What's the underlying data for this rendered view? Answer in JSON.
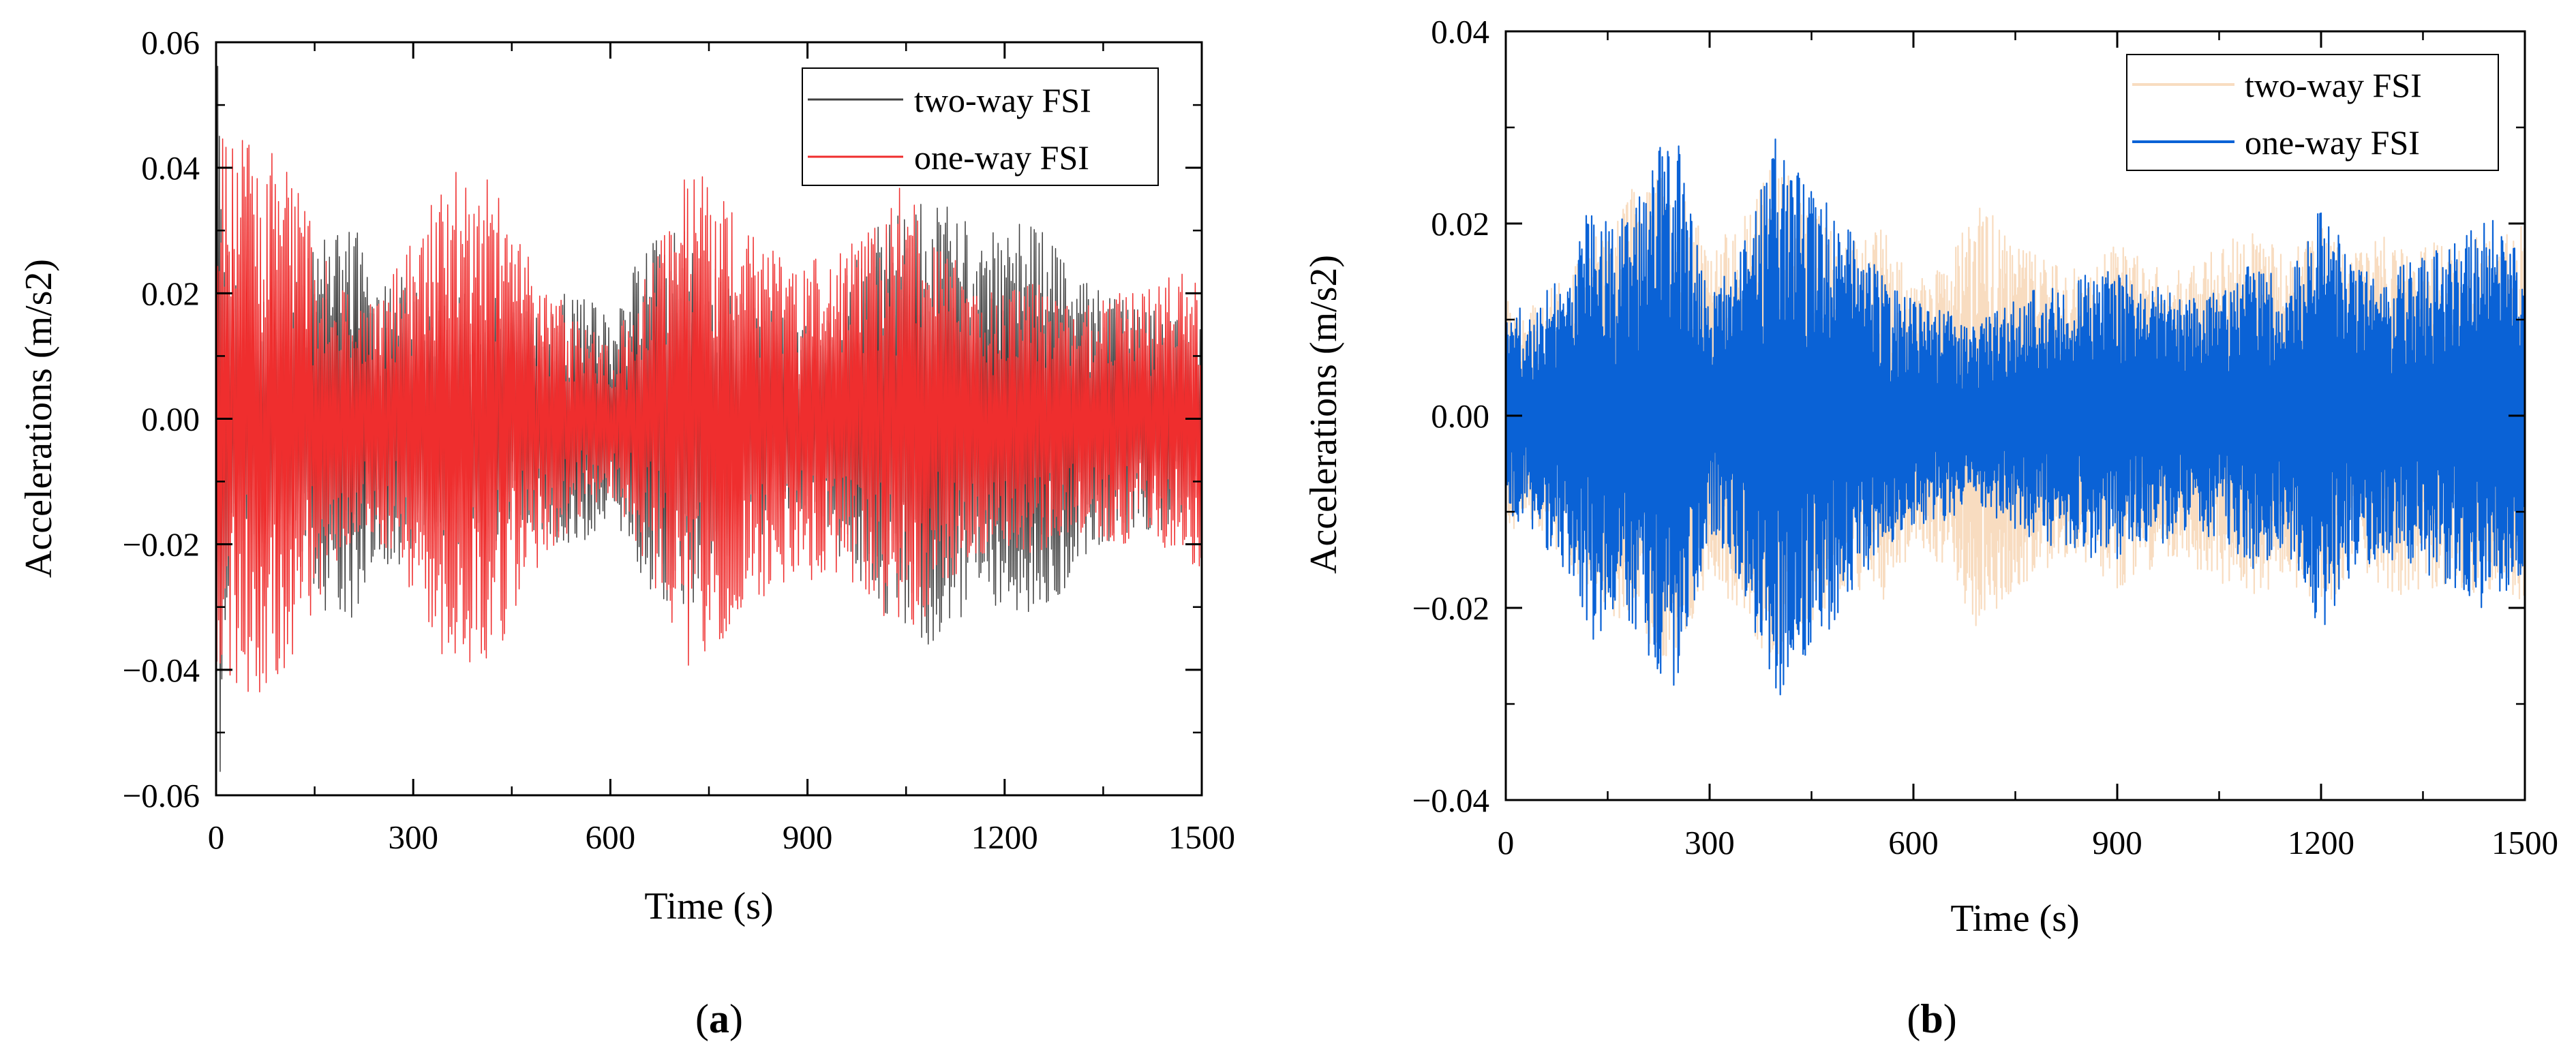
{
  "chart_data": [
    {
      "panel": "a",
      "type": "line",
      "caption_letter": "a",
      "xlabel": "Time (s)",
      "ylabel": "Accelerations (m/s2)",
      "xlim": [
        0,
        1500
      ],
      "ylim": [
        -0.06,
        0.06
      ],
      "x_ticks": [
        0,
        300,
        600,
        900,
        1200,
        1500
      ],
      "x_tick_labels": [
        "0",
        "300",
        "600",
        "900",
        "1200",
        "1500"
      ],
      "y_ticks": [
        -0.06,
        -0.04,
        -0.02,
        0.0,
        0.02,
        0.04,
        0.06
      ],
      "y_tick_labels": [
        "−0.06",
        "−0.04",
        "−0.02",
        "0.00",
        "0.02",
        "0.04",
        "0.06"
      ],
      "legend_position": "top-right",
      "series": [
        {
          "name": "two-way FSI",
          "color": "#404040",
          "envelope_time": [
            0,
            5,
            15,
            40,
            80,
            120,
            160,
            200,
            240,
            280,
            320,
            360,
            400,
            440,
            480,
            520,
            560,
            600,
            640,
            680,
            720,
            760,
            800,
            840,
            880,
            920,
            960,
            1000,
            1040,
            1080,
            1120,
            1160,
            1200,
            1240,
            1280,
            1320,
            1360,
            1400,
            1440,
            1480,
            1500
          ],
          "envelope_amplitude": [
            0.06,
            0.06,
            0.03,
            0.02,
            0.02,
            0.022,
            0.03,
            0.035,
            0.022,
            0.025,
            0.018,
            0.02,
            0.02,
            0.02,
            0.018,
            0.02,
            0.02,
            0.016,
            0.025,
            0.03,
            0.03,
            0.025,
            0.02,
            0.018,
            0.015,
            0.015,
            0.025,
            0.03,
            0.033,
            0.037,
            0.033,
            0.03,
            0.03,
            0.032,
            0.03,
            0.022,
            0.02,
            0.018,
            0.018,
            0.015,
            0.015
          ]
        },
        {
          "name": "one-way FSI",
          "color": "#ef2e2e",
          "envelope_time": [
            0,
            20,
            40,
            70,
            100,
            130,
            160,
            200,
            240,
            280,
            320,
            360,
            400,
            440,
            480,
            520,
            560,
            600,
            640,
            680,
            720,
            760,
            800,
            840,
            880,
            920,
            960,
            1000,
            1040,
            1080,
            1120,
            1160,
            1200,
            1240,
            1280,
            1320,
            1360,
            1400,
            1440,
            1480,
            1500
          ],
          "envelope_amplitude": [
            0.045,
            0.05,
            0.045,
            0.045,
            0.042,
            0.035,
            0.028,
            0.02,
            0.018,
            0.025,
            0.035,
            0.04,
            0.04,
            0.035,
            0.025,
            0.02,
            0.015,
            0.012,
            0.02,
            0.03,
            0.04,
            0.038,
            0.03,
            0.028,
            0.025,
            0.026,
            0.028,
            0.03,
            0.037,
            0.032,
            0.026,
            0.022,
            0.02,
            0.022,
            0.02,
            0.018,
            0.02,
            0.02,
            0.022,
            0.024,
            0.024
          ]
        }
      ]
    },
    {
      "panel": "b",
      "type": "line",
      "caption_letter": "b",
      "xlabel": "Time (s)",
      "ylabel": "Accelerations (m/s2)",
      "xlim": [
        0,
        1500
      ],
      "ylim": [
        -0.04,
        0.04
      ],
      "x_ticks": [
        0,
        300,
        600,
        900,
        1200,
        1500
      ],
      "x_tick_labels": [
        "0",
        "300",
        "600",
        "900",
        "1200",
        "1500"
      ],
      "y_ticks": [
        -0.04,
        -0.02,
        0.0,
        0.02,
        0.04
      ],
      "y_tick_labels": [
        "−0.04",
        "−0.02",
        "0.00",
        "0.02",
        "0.04"
      ],
      "legend_position": "top-right",
      "series": [
        {
          "name": "two-way FSI",
          "color": "#f8dcc0",
          "envelope_time": [
            0,
            50,
            100,
            150,
            200,
            250,
            300,
            350,
            400,
            450,
            500,
            550,
            600,
            650,
            700,
            750,
            800,
            850,
            900,
            950,
            1000,
            1050,
            1100,
            1150,
            1200,
            1250,
            1300,
            1350,
            1400,
            1450,
            1500
          ],
          "envelope_amplitude": [
            0.012,
            0.012,
            0.016,
            0.02,
            0.025,
            0.026,
            0.017,
            0.021,
            0.027,
            0.022,
            0.018,
            0.02,
            0.014,
            0.016,
            0.023,
            0.018,
            0.016,
            0.015,
            0.018,
            0.016,
            0.015,
            0.018,
            0.019,
            0.017,
            0.02,
            0.017,
            0.019,
            0.018,
            0.018,
            0.019,
            0.02
          ]
        },
        {
          "name": "one-way FSI",
          "color": "#0a62d6",
          "envelope_time": [
            0,
            50,
            100,
            130,
            160,
            200,
            230,
            250,
            270,
            300,
            350,
            380,
            400,
            420,
            450,
            480,
            520,
            560,
            600,
            650,
            700,
            750,
            800,
            850,
            900,
            950,
            1000,
            1050,
            1100,
            1150,
            1200,
            1250,
            1300,
            1350,
            1400,
            1450,
            1500
          ],
          "envelope_amplitude": [
            0.01,
            0.013,
            0.017,
            0.024,
            0.02,
            0.023,
            0.029,
            0.03,
            0.022,
            0.012,
            0.018,
            0.026,
            0.03,
            0.027,
            0.024,
            0.022,
            0.018,
            0.014,
            0.012,
            0.011,
            0.01,
            0.012,
            0.014,
            0.015,
            0.015,
            0.014,
            0.012,
            0.013,
            0.016,
            0.014,
            0.023,
            0.016,
            0.015,
            0.017,
            0.018,
            0.021,
            0.016
          ]
        }
      ]
    }
  ]
}
